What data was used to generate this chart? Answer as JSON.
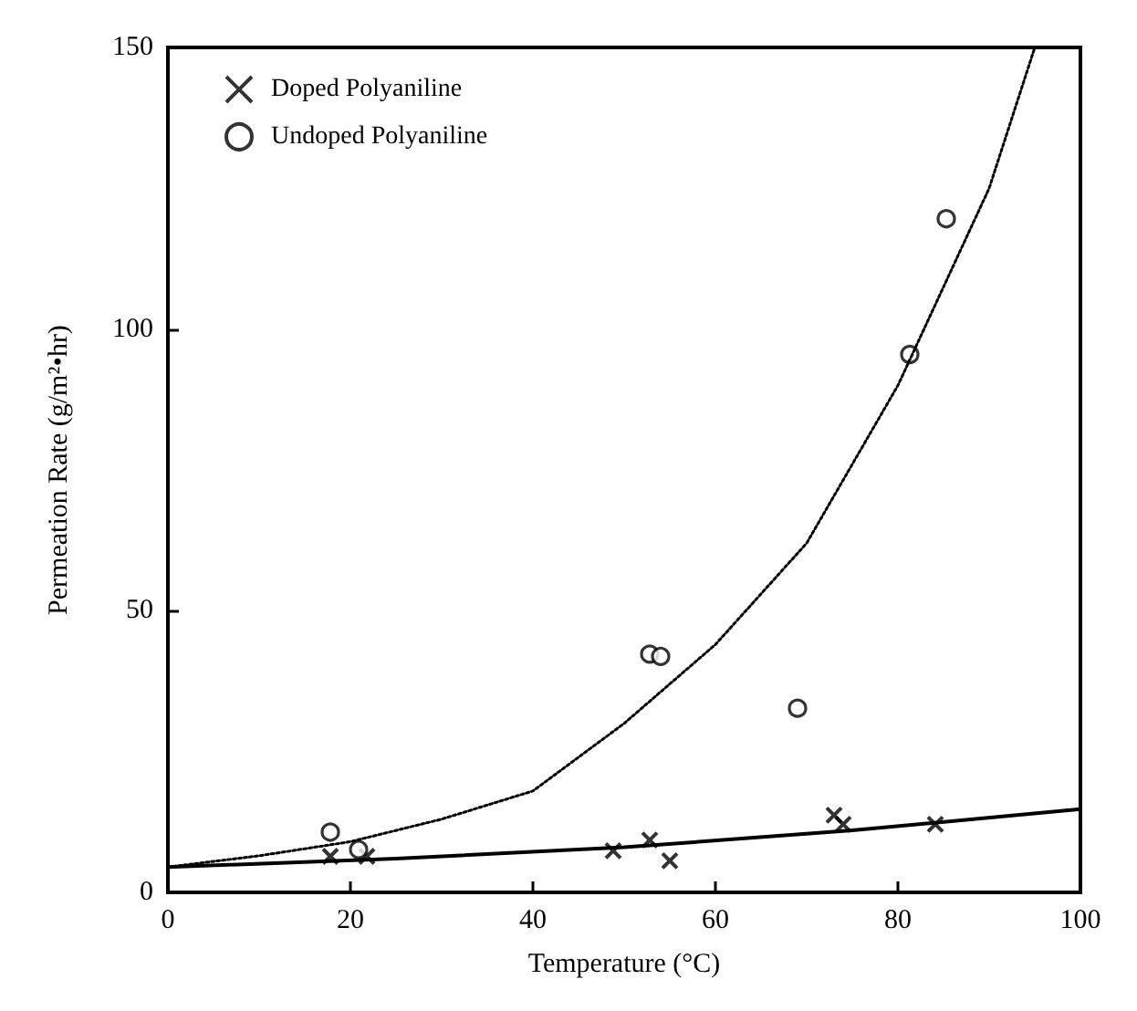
{
  "chart_data": {
    "type": "scatter",
    "xlabel": "Temperature (°C)",
    "ylabel": "Permeation Rate (g/m²•hr)",
    "xlim": [
      0,
      100
    ],
    "xticks": [
      0,
      20,
      40,
      60,
      80,
      100
    ],
    "ylim": [
      0,
      150
    ],
    "yticks": [
      0,
      50,
      100,
      150
    ],
    "grid": false,
    "legend": "top left",
    "series": [
      {
        "name": "Doped Polyaniline",
        "color": "#000000",
        "marker": "cross",
        "x": [
          17.8,
          21.8,
          48.8,
          52.8,
          55,
          73,
          74,
          84.1
        ],
        "values": [
          6.4,
          6.4,
          7.4,
          9.3,
          5.6,
          13.7,
          12.1,
          12.1
        ]
      },
      {
        "name": "Undoped Polyaniline",
        "color": "#000000",
        "marker": "circle",
        "x": [
          17.8,
          20.9,
          52.8,
          54,
          69,
          81.3,
          85.3
        ],
        "values": [
          10.7,
          7.6,
          42.3,
          41.9,
          32.7,
          95.5,
          119.6
        ]
      },
      {
        "type": "line",
        "color": "#000000",
        "marker": "none",
        "line_style": "solid",
        "x": [
          0,
          25,
          50,
          75,
          100
        ],
        "values": [
          4.5,
          6,
          8,
          11,
          14.8
        ]
      },
      {
        "type": "line",
        "color": "#000000",
        "marker": "none",
        "line_style": "dotted",
        "x": [
          0,
          10,
          20,
          30,
          40,
          50,
          60,
          70,
          80,
          90,
          95
        ],
        "values": [
          4.5,
          6.5,
          9,
          13,
          18,
          30,
          44,
          62,
          90,
          125,
          150
        ]
      }
    ]
  }
}
